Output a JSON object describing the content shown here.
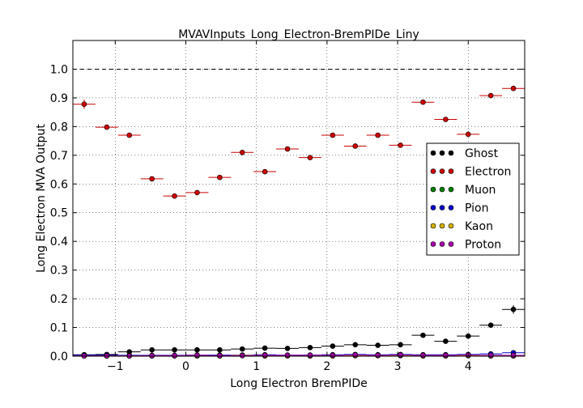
{
  "chart_data": {
    "type": "scatter",
    "title": "MVAVInputs_Long_Electron-BremPIDe_Liny",
    "xlabel": "Long Electron BremPIDe",
    "ylabel": "Long Electron MVA Output",
    "xlim": [
      -1.6,
      4.8
    ],
    "ylim": [
      0.0,
      1.1
    ],
    "xticks": [
      -1,
      0,
      1,
      2,
      3,
      4
    ],
    "xtick_labels": [
      "−1",
      "0",
      "1",
      "2",
      "3",
      "4"
    ],
    "yticks": [
      0.0,
      0.1,
      0.2,
      0.3,
      0.4,
      0.5,
      0.6,
      0.7,
      0.8,
      0.9,
      1.0
    ],
    "ytick_labels": [
      "0.0",
      "0.1",
      "0.2",
      "0.3",
      "0.4",
      "0.5",
      "0.6",
      "0.7",
      "0.8",
      "0.9",
      "1.0"
    ],
    "reference_line": 1.0,
    "grid": true,
    "legend_position": "right",
    "bin_half_width": 0.16,
    "series": [
      {
        "name": "Ghost",
        "color": "#000000",
        "x": [
          -1.44,
          -1.12,
          -0.8,
          -0.48,
          -0.16,
          0.16,
          0.48,
          0.8,
          1.12,
          1.44,
          1.76,
          2.08,
          2.4,
          2.72,
          3.04,
          3.36,
          3.68,
          4.0,
          4.32,
          4.64
        ],
        "y": [
          0.005,
          0.006,
          0.015,
          0.022,
          0.022,
          0.022,
          0.022,
          0.025,
          0.028,
          0.027,
          0.03,
          0.035,
          0.04,
          0.038,
          0.04,
          0.073,
          0.052,
          0.07,
          0.108,
          0.163
        ],
        "yerr": [
          0.001,
          0.001,
          0.002,
          0.002,
          0.002,
          0.002,
          0.002,
          0.002,
          0.002,
          0.002,
          0.002,
          0.002,
          0.003,
          0.003,
          0.003,
          0.004,
          0.003,
          0.004,
          0.005,
          0.015
        ]
      },
      {
        "name": "Electron",
        "color": "#cc0000",
        "x": [
          -1.44,
          -1.12,
          -0.8,
          -0.48,
          -0.16,
          0.16,
          0.48,
          0.8,
          1.12,
          1.44,
          1.76,
          2.08,
          2.4,
          2.72,
          3.04,
          3.36,
          3.68,
          4.0,
          4.32,
          4.64
        ],
        "y": [
          0.878,
          0.798,
          0.77,
          0.618,
          0.558,
          0.57,
          0.623,
          0.71,
          0.643,
          0.722,
          0.692,
          0.77,
          0.732,
          0.77,
          0.735,
          0.885,
          0.825,
          0.773,
          0.908,
          0.933
        ],
        "yerr": [
          0.016,
          0.006,
          0.005,
          0.004,
          0.004,
          0.004,
          0.004,
          0.004,
          0.004,
          0.004,
          0.004,
          0.004,
          0.004,
          0.004,
          0.004,
          0.004,
          0.004,
          0.004,
          0.004,
          0.006
        ]
      },
      {
        "name": "Muon",
        "color": "#008000",
        "x": [
          -1.44,
          -1.12,
          -0.8,
          -0.48,
          -0.16,
          0.16,
          0.48,
          0.8,
          1.12,
          1.44,
          1.76,
          2.08,
          2.4,
          2.72,
          3.04,
          3.36,
          3.68,
          4.0,
          4.32,
          4.64
        ],
        "y": [
          0.002,
          0.002,
          0.002,
          0.002,
          0.002,
          0.002,
          0.002,
          0.002,
          0.002,
          0.002,
          0.002,
          0.002,
          0.002,
          0.002,
          0.002,
          0.002,
          0.002,
          0.002,
          0.002,
          0.002
        ],
        "yerr": [
          0,
          0,
          0,
          0,
          0,
          0,
          0,
          0,
          0,
          0,
          0,
          0,
          0,
          0,
          0,
          0,
          0,
          0,
          0,
          0
        ]
      },
      {
        "name": "Pion",
        "color": "#0000cc",
        "x": [
          -1.44,
          -1.12,
          -0.8,
          -0.48,
          -0.16,
          0.16,
          0.48,
          0.8,
          1.12,
          1.44,
          1.76,
          2.08,
          2.4,
          2.72,
          3.04,
          3.36,
          3.68,
          4.0,
          4.32,
          4.64
        ],
        "y": [
          0.004,
          0.004,
          0.003,
          0.003,
          0.003,
          0.004,
          0.004,
          0.004,
          0.005,
          0.004,
          0.004,
          0.005,
          0.006,
          0.005,
          0.006,
          0.005,
          0.005,
          0.006,
          0.008,
          0.012
        ],
        "yerr": [
          0.001,
          0.001,
          0.001,
          0.001,
          0.001,
          0.001,
          0.001,
          0.001,
          0.001,
          0.001,
          0.001,
          0.001,
          0.001,
          0.001,
          0.001,
          0.001,
          0.001,
          0.001,
          0.001,
          0.002
        ]
      },
      {
        "name": "Kaon",
        "color": "#d4b000",
        "x": [
          -1.44,
          -1.12,
          -0.8,
          -0.48,
          -0.16,
          0.16,
          0.48,
          0.8,
          1.12,
          1.44,
          1.76,
          2.08,
          2.4,
          2.72,
          3.04,
          3.36,
          3.68,
          4.0,
          4.32,
          4.64
        ],
        "y": [
          0.001,
          0.001,
          0.001,
          0.001,
          0.001,
          0.001,
          0.001,
          0.003,
          0.001,
          0.001,
          0.001,
          0.001,
          0.002,
          0.002,
          0.003,
          0.001,
          0.001,
          0.002,
          0.001,
          0.001
        ],
        "yerr": [
          0,
          0,
          0,
          0,
          0,
          0,
          0,
          0,
          0,
          0,
          0,
          0,
          0,
          0,
          0,
          0,
          0,
          0,
          0,
          0
        ]
      },
      {
        "name": "Proton",
        "color": "#aa00aa",
        "x": [
          -1.44,
          -1.12,
          -0.8,
          -0.48,
          -0.16,
          0.16,
          0.48,
          0.8,
          1.12,
          1.44,
          1.76,
          2.08,
          2.4,
          2.72,
          3.04,
          3.36,
          3.68,
          4.0,
          4.32,
          4.64
        ],
        "y": [
          0.001,
          0.001,
          0.001,
          0.002,
          0.002,
          0.003,
          0.002,
          0.002,
          0.003,
          0.003,
          0.003,
          0.003,
          0.004,
          0.003,
          0.004,
          0.003,
          0.003,
          0.004,
          0.003,
          0.003
        ],
        "yerr": [
          0,
          0,
          0,
          0,
          0,
          0,
          0,
          0,
          0,
          0,
          0,
          0,
          0,
          0,
          0,
          0,
          0,
          0,
          0,
          0
        ]
      }
    ]
  }
}
